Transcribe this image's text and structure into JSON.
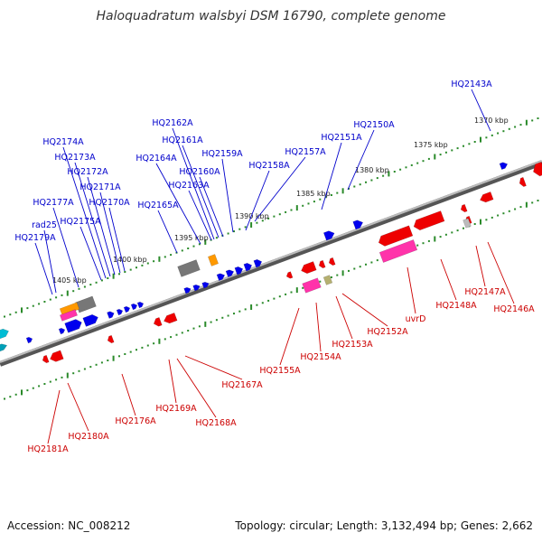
{
  "title": "Haloquadratum walsbyi DSM 16790, complete genome",
  "footer": {
    "accession": "Accession: NC_008212",
    "topology": "Topology: circular; Length: 3,132,494 bp; Genes: 2,662"
  },
  "colors": {
    "forward_label": "#0000cc",
    "reverse_label": "#cc0000",
    "forward_gene": "#0000ee",
    "reverse_gene": "#ee0000",
    "rna_gene": "#ff33aa",
    "pseudo_gene": "#777777",
    "other_gene": "#ff9900",
    "backbone": "#808080",
    "tick": "#2a8a2a"
  },
  "scale_labels": [
    "1370 kbp",
    "1375 kbp",
    "1380 kbp",
    "1385 kbp",
    "1390 kbp",
    "1395 kbp",
    "1400 kbp",
    "1405 kbp"
  ],
  "forward_labels": [
    "HQ2143A",
    "HQ2150A",
    "HQ2151A",
    "HQ2157A",
    "HQ2158A",
    "HQ2159A",
    "HQ2160A",
    "HQ2161A",
    "HQ2162A",
    "HQ2163A",
    "HQ2164A",
    "HQ2165A",
    "HQ2170A",
    "HQ2171A",
    "HQ2172A",
    "HQ2173A",
    "HQ2174A",
    "HQ2175A",
    "HQ2177A",
    "rad25",
    "HQ2179A"
  ],
  "reverse_labels": [
    "HQ2146A",
    "HQ2147A",
    "HQ2148A",
    "uvrD",
    "HQ2152A",
    "HQ2153A",
    "HQ2154A",
    "HQ2155A",
    "HQ2167A",
    "HQ2168A",
    "HQ2169A",
    "HQ2176A",
    "HQ2180A",
    "HQ2181A"
  ]
}
